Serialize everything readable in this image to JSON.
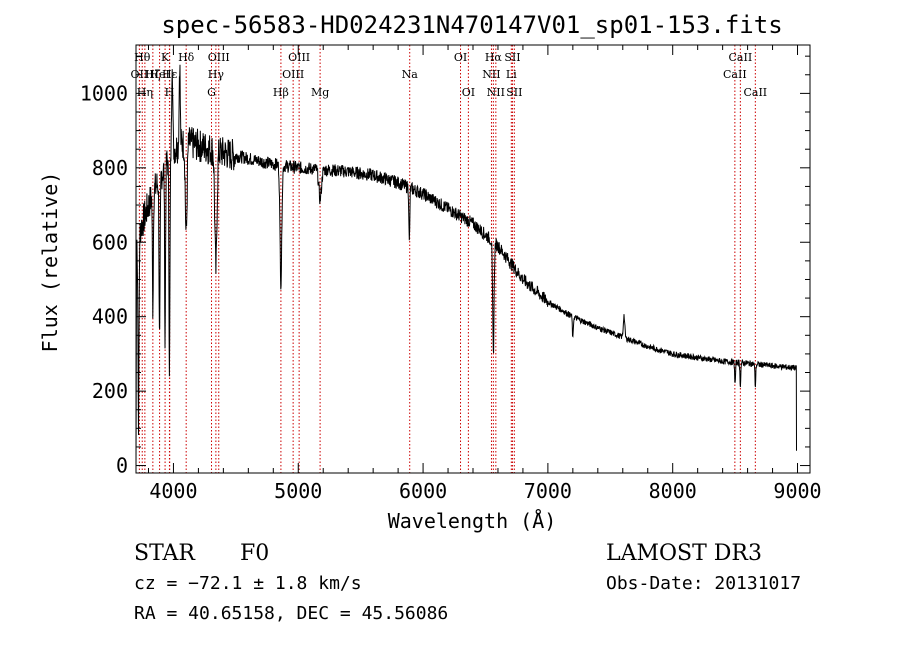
{
  "chart_data": {
    "type": "line",
    "title": "spec-56583-HD024231N470147V01_sp01-153.fits",
    "xlabel": "Wavelength (Å)",
    "ylabel": "Flux (relative)",
    "xlim": [
      3700,
      9100
    ],
    "ylim": [
      -20,
      1130
    ],
    "xticks": [
      4000,
      5000,
      6000,
      7000,
      8000,
      9000
    ],
    "yticks": [
      0,
      200,
      400,
      600,
      800,
      1000
    ],
    "grid": false,
    "series": [
      {
        "name": "flux",
        "color": "#000000",
        "continuum": [
          [
            3700,
            600
          ],
          [
            3800,
            700
          ],
          [
            3900,
            780
          ],
          [
            4000,
            850
          ],
          [
            4100,
            870
          ],
          [
            4200,
            860
          ],
          [
            4400,
            840
          ],
          [
            4600,
            825
          ],
          [
            4800,
            810
          ],
          [
            5000,
            800
          ],
          [
            5200,
            795
          ],
          [
            5400,
            790
          ],
          [
            5600,
            780
          ],
          [
            5800,
            760
          ],
          [
            6000,
            730
          ],
          [
            6200,
            690
          ],
          [
            6400,
            650
          ],
          [
            6600,
            590
          ],
          [
            6800,
            500
          ],
          [
            7000,
            440
          ],
          [
            7200,
            400
          ],
          [
            7400,
            370
          ],
          [
            7600,
            345
          ],
          [
            7800,
            320
          ],
          [
            8000,
            300
          ],
          [
            8200,
            290
          ],
          [
            8400,
            280
          ],
          [
            8600,
            275
          ],
          [
            8800,
            268
          ],
          [
            8990,
            262
          ]
        ],
        "absorptions": [
          [
            3720,
            500,
            6
          ],
          [
            3835,
            300,
            5
          ],
          [
            3889,
            450,
            6
          ],
          [
            3933,
            480,
            5
          ],
          [
            3968,
            560,
            6
          ],
          [
            4102,
            250,
            10
          ],
          [
            4340,
            320,
            12
          ],
          [
            4861,
            320,
            10
          ],
          [
            5175,
            80,
            15
          ],
          [
            5890,
            150,
            5
          ],
          [
            6563,
            300,
            8
          ],
          [
            7200,
            60,
            5
          ],
          [
            8500,
            60,
            5
          ],
          [
            8542,
            60,
            5
          ],
          [
            8662,
            60,
            5
          ]
        ],
        "emissions": [
          [
            3990,
            260,
            6
          ],
          [
            4050,
            230,
            6
          ],
          [
            7610,
            60,
            8
          ]
        ],
        "edges": {
          "start_drop_to": 0,
          "end_drop_to": 40
        }
      }
    ],
    "spectral_lines": [
      {
        "wavelength": 3727,
        "label": "OII",
        "row": 1
      },
      {
        "wavelength": 3750,
        "label": "Hθ",
        "row": 0
      },
      {
        "wavelength": 3771,
        "label": "Hη",
        "row": 2
      },
      {
        "wavelength": 3835,
        "label": "Hζ",
        "row": 1
      },
      {
        "wavelength": 3889,
        "label": "HeI",
        "row": 1
      },
      {
        "wavelength": 3933,
        "label": "K",
        "row": 0
      },
      {
        "wavelength": 3968,
        "label": "H",
        "row": 2
      },
      {
        "wavelength": 3970,
        "label": "Hε",
        "row": 1
      },
      {
        "wavelength": 4102,
        "label": "Hδ",
        "row": 0
      },
      {
        "wavelength": 4305,
        "label": "G",
        "row": 2
      },
      {
        "wavelength": 4340,
        "label": "Hγ",
        "row": 1
      },
      {
        "wavelength": 4363,
        "label": "OIII",
        "row": 0
      },
      {
        "wavelength": 4861,
        "label": "Hβ",
        "row": 2
      },
      {
        "wavelength": 4959,
        "label": "OIII",
        "row": 1
      },
      {
        "wavelength": 5007,
        "label": "OIII",
        "row": 0
      },
      {
        "wavelength": 5175,
        "label": "Mg",
        "row": 2
      },
      {
        "wavelength": 5893,
        "label": "Na",
        "row": 1
      },
      {
        "wavelength": 6300,
        "label": "OI",
        "row": 0
      },
      {
        "wavelength": 6363,
        "label": "OI",
        "row": 2
      },
      {
        "wavelength": 6548,
        "label": "NII",
        "row": 1
      },
      {
        "wavelength": 6563,
        "label": "Hα",
        "row": 0
      },
      {
        "wavelength": 6583,
        "label": "NII",
        "row": 2
      },
      {
        "wavelength": 6707,
        "label": "Li",
        "row": 1
      },
      {
        "wavelength": 6716,
        "label": "SII",
        "row": 0
      },
      {
        "wavelength": 6731,
        "label": "SII",
        "row": 2
      },
      {
        "wavelength": 8498,
        "label": "CaII",
        "row": 1
      },
      {
        "wavelength": 8542,
        "label": "CaII",
        "row": 0
      },
      {
        "wavelength": 8662,
        "label": "CaII",
        "row": 2
      }
    ],
    "annotation_color": "#cc0000"
  },
  "info": {
    "object_class": "STAR",
    "subclass": "F0",
    "survey": "LAMOST DR3",
    "redshift": "cz = −72.1 ± 1.8 km/s",
    "obs_date": "Obs-Date: 20131017",
    "coords": "RA =  40.65158, DEC =  45.56086"
  }
}
